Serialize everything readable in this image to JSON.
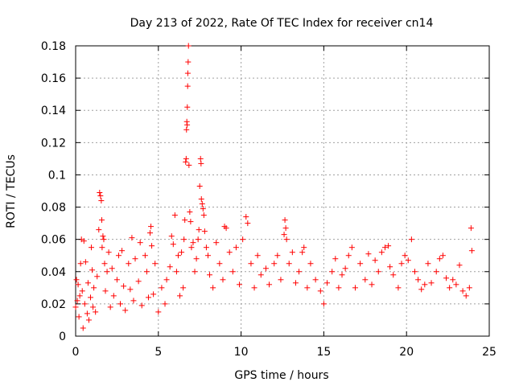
{
  "chart_data": {
    "type": "scatter",
    "title": "Day 213 of 2022, Rate Of TEC Index for receiver cn14",
    "xlabel": "GPS time / hours",
    "ylabel": "ROTI / TECUs",
    "xlim": [
      0,
      25
    ],
    "ylim": [
      0,
      0.18
    ],
    "xticks": [
      0,
      5,
      10,
      15,
      20,
      25
    ],
    "yticks": [
      0,
      0.02,
      0.04,
      0.06,
      0.08,
      0.1,
      0.12,
      0.14,
      0.16,
      0.18
    ],
    "grid": true,
    "marker": "plus",
    "color": "#ff0000",
    "series": [
      {
        "points": [
          [
            0.0,
            0.018
          ],
          [
            0.05,
            0.035
          ],
          [
            0.1,
            0.022
          ],
          [
            0.15,
            0.032
          ],
          [
            0.2,
            0.012
          ],
          [
            0.25,
            0.025
          ],
          [
            0.3,
            0.045
          ],
          [
            0.35,
            0.06
          ],
          [
            0.4,
            0.028
          ],
          [
            0.45,
            0.005
          ],
          [
            0.5,
            0.059
          ],
          [
            0.55,
            0.02
          ],
          [
            0.6,
            0.046
          ],
          [
            0.7,
            0.014
          ],
          [
            0.75,
            0.033
          ],
          [
            0.8,
            0.01
          ],
          [
            0.9,
            0.024
          ],
          [
            0.95,
            0.055
          ],
          [
            1.0,
            0.041
          ],
          [
            1.05,
            0.018
          ],
          [
            1.1,
            0.03
          ],
          [
            1.2,
            0.015
          ],
          [
            1.3,
            0.037
          ],
          [
            1.4,
            0.066
          ],
          [
            1.45,
            0.089
          ],
          [
            1.5,
            0.087
          ],
          [
            1.55,
            0.084
          ],
          [
            1.58,
            0.072
          ],
          [
            1.6,
            0.055
          ],
          [
            1.65,
            0.062
          ],
          [
            1.7,
            0.06
          ],
          [
            1.75,
            0.045
          ],
          [
            1.8,
            0.028
          ],
          [
            1.9,
            0.04
          ],
          [
            2.0,
            0.052
          ],
          [
            2.1,
            0.018
          ],
          [
            2.2,
            0.042
          ],
          [
            2.3,
            0.025
          ],
          [
            2.5,
            0.035
          ],
          [
            2.6,
            0.05
          ],
          [
            2.7,
            0.02
          ],
          [
            2.8,
            0.053
          ],
          [
            2.9,
            0.031
          ],
          [
            3.0,
            0.016
          ],
          [
            3.2,
            0.045
          ],
          [
            3.3,
            0.029
          ],
          [
            3.4,
            0.061
          ],
          [
            3.5,
            0.022
          ],
          [
            3.6,
            0.048
          ],
          [
            3.8,
            0.034
          ],
          [
            3.9,
            0.058
          ],
          [
            4.0,
            0.019
          ],
          [
            4.2,
            0.05
          ],
          [
            4.3,
            0.04
          ],
          [
            4.4,
            0.024
          ],
          [
            4.5,
            0.064
          ],
          [
            4.55,
            0.068
          ],
          [
            4.6,
            0.056
          ],
          [
            4.7,
            0.026
          ],
          [
            4.8,
            0.045
          ],
          [
            5.0,
            0.015
          ],
          [
            5.2,
            0.03
          ],
          [
            5.4,
            0.02
          ],
          [
            5.5,
            0.035
          ],
          [
            5.7,
            0.043
          ],
          [
            5.8,
            0.062
          ],
          [
            5.9,
            0.057
          ],
          [
            6.0,
            0.075
          ],
          [
            6.1,
            0.04
          ],
          [
            6.2,
            0.05
          ],
          [
            6.3,
            0.025
          ],
          [
            6.4,
            0.052
          ],
          [
            6.5,
            0.03
          ],
          [
            6.55,
            0.06
          ],
          [
            6.6,
            0.072
          ],
          [
            6.65,
            0.108
          ],
          [
            6.68,
            0.11
          ],
          [
            6.7,
            0.128
          ],
          [
            6.72,
            0.133
          ],
          [
            6.74,
            0.131
          ],
          [
            6.75,
            0.142
          ],
          [
            6.77,
            0.155
          ],
          [
            6.78,
            0.163
          ],
          [
            6.8,
            0.17
          ],
          [
            6.82,
            0.18
          ],
          [
            6.85,
            0.106
          ],
          [
            6.9,
            0.077
          ],
          [
            6.95,
            0.071
          ],
          [
            7.0,
            0.055
          ],
          [
            7.1,
            0.058
          ],
          [
            7.2,
            0.04
          ],
          [
            7.3,
            0.048
          ],
          [
            7.4,
            0.06
          ],
          [
            7.45,
            0.066
          ],
          [
            7.5,
            0.093
          ],
          [
            7.55,
            0.11
          ],
          [
            7.58,
            0.107
          ],
          [
            7.6,
            0.085
          ],
          [
            7.65,
            0.082
          ],
          [
            7.7,
            0.079
          ],
          [
            7.75,
            0.075
          ],
          [
            7.8,
            0.065
          ],
          [
            7.9,
            0.055
          ],
          [
            8.0,
            0.05
          ],
          [
            8.1,
            0.038
          ],
          [
            8.3,
            0.03
          ],
          [
            8.5,
            0.058
          ],
          [
            8.7,
            0.045
          ],
          [
            8.9,
            0.035
          ],
          [
            9.0,
            0.068
          ],
          [
            9.1,
            0.067
          ],
          [
            9.3,
            0.052
          ],
          [
            9.5,
            0.04
          ],
          [
            9.7,
            0.055
          ],
          [
            9.9,
            0.032
          ],
          [
            10.1,
            0.06
          ],
          [
            10.3,
            0.074
          ],
          [
            10.4,
            0.07
          ],
          [
            10.6,
            0.045
          ],
          [
            10.8,
            0.03
          ],
          [
            11.0,
            0.05
          ],
          [
            11.2,
            0.038
          ],
          [
            11.5,
            0.042
          ],
          [
            11.7,
            0.032
          ],
          [
            12.0,
            0.045
          ],
          [
            12.2,
            0.05
          ],
          [
            12.4,
            0.035
          ],
          [
            12.6,
            0.063
          ],
          [
            12.65,
            0.072
          ],
          [
            12.7,
            0.067
          ],
          [
            12.75,
            0.06
          ],
          [
            12.9,
            0.045
          ],
          [
            13.1,
            0.052
          ],
          [
            13.3,
            0.033
          ],
          [
            13.5,
            0.04
          ],
          [
            13.7,
            0.052
          ],
          [
            13.8,
            0.055
          ],
          [
            14.0,
            0.03
          ],
          [
            14.2,
            0.045
          ],
          [
            14.5,
            0.035
          ],
          [
            14.8,
            0.028
          ],
          [
            15.0,
            0.02
          ],
          [
            15.2,
            0.033
          ],
          [
            15.5,
            0.04
          ],
          [
            15.7,
            0.048
          ],
          [
            15.9,
            0.03
          ],
          [
            16.1,
            0.038
          ],
          [
            16.3,
            0.042
          ],
          [
            16.5,
            0.05
          ],
          [
            16.7,
            0.055
          ],
          [
            16.9,
            0.03
          ],
          [
            17.2,
            0.045
          ],
          [
            17.5,
            0.035
          ],
          [
            17.7,
            0.051
          ],
          [
            17.9,
            0.032
          ],
          [
            18.1,
            0.047
          ],
          [
            18.3,
            0.04
          ],
          [
            18.5,
            0.052
          ],
          [
            18.7,
            0.055
          ],
          [
            18.9,
            0.056
          ],
          [
            19.0,
            0.043
          ],
          [
            19.2,
            0.038
          ],
          [
            19.5,
            0.03
          ],
          [
            19.7,
            0.045
          ],
          [
            19.9,
            0.05
          ],
          [
            20.1,
            0.047
          ],
          [
            20.3,
            0.06
          ],
          [
            20.5,
            0.04
          ],
          [
            20.7,
            0.035
          ],
          [
            20.9,
            0.029
          ],
          [
            21.1,
            0.032
          ],
          [
            21.3,
            0.045
          ],
          [
            21.5,
            0.033
          ],
          [
            21.8,
            0.04
          ],
          [
            22.0,
            0.048
          ],
          [
            22.2,
            0.05
          ],
          [
            22.4,
            0.036
          ],
          [
            22.6,
            0.03
          ],
          [
            22.8,
            0.035
          ],
          [
            23.0,
            0.032
          ],
          [
            23.2,
            0.044
          ],
          [
            23.4,
            0.028
          ],
          [
            23.6,
            0.025
          ],
          [
            23.8,
            0.03
          ],
          [
            23.9,
            0.067
          ],
          [
            23.95,
            0.053
          ]
        ]
      }
    ]
  }
}
